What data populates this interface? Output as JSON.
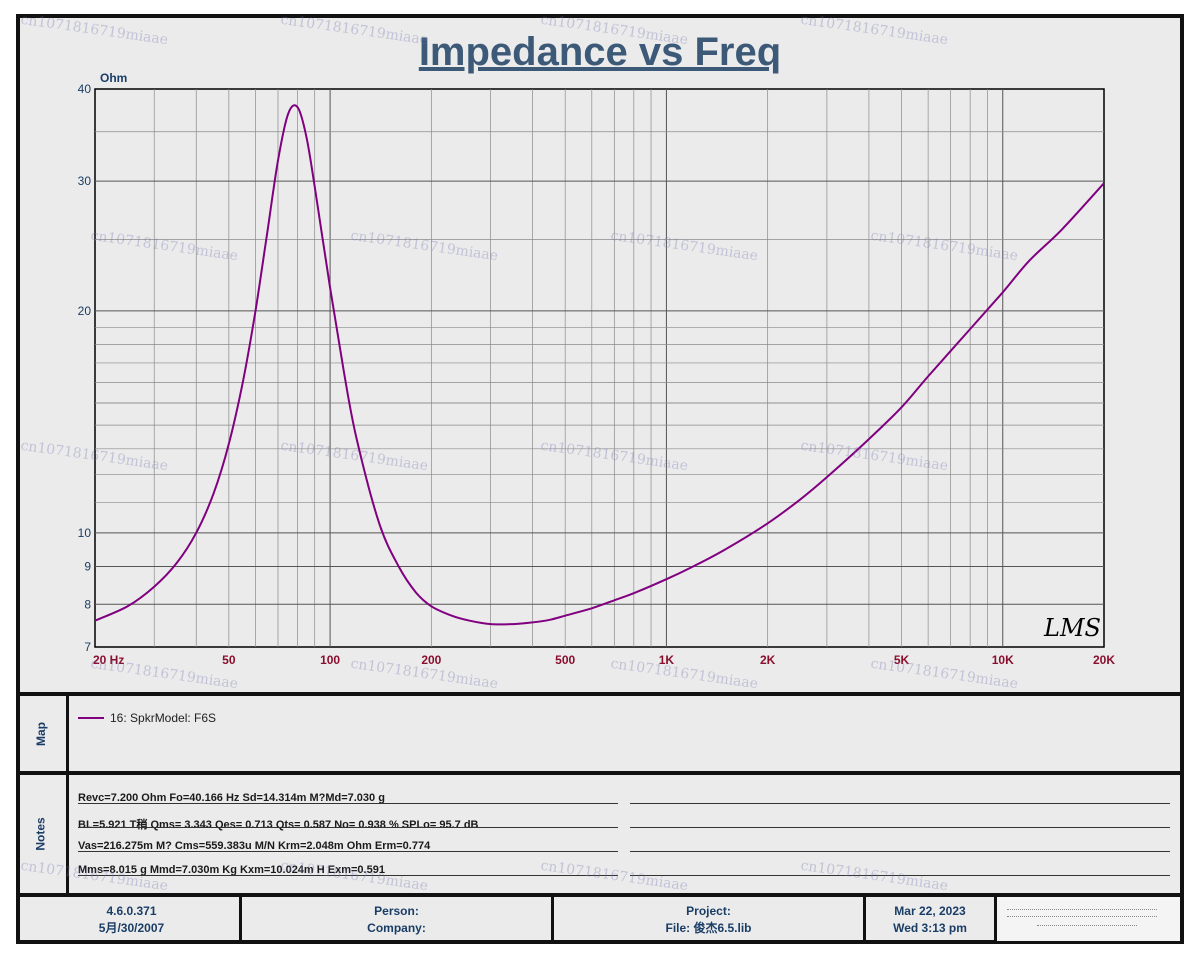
{
  "chart_data": {
    "type": "line",
    "title": "Impedance vs Freq",
    "ylabel": "Ohm",
    "xscale": "log",
    "yscale": "log",
    "xlim": [
      20,
      20000
    ],
    "ylim": [
      7,
      40
    ],
    "x_ticks": [
      {
        "value": 20,
        "label": "20 Hz"
      },
      {
        "value": 50,
        "label": "50"
      },
      {
        "value": 100,
        "label": "100"
      },
      {
        "value": 200,
        "label": "200"
      },
      {
        "value": 500,
        "label": "500"
      },
      {
        "value": 1000,
        "label": "1K"
      },
      {
        "value": 2000,
        "label": "2K"
      },
      {
        "value": 5000,
        "label": "5K"
      },
      {
        "value": 10000,
        "label": "10K"
      },
      {
        "value": 20000,
        "label": "20K"
      }
    ],
    "y_ticks": [
      {
        "value": 7,
        "label": "7"
      },
      {
        "value": 8,
        "label": "8"
      },
      {
        "value": 9,
        "label": "9"
      },
      {
        "value": 10,
        "label": "10"
      },
      {
        "value": 20,
        "label": "20"
      },
      {
        "value": 30,
        "label": "30"
      },
      {
        "value": 40,
        "label": "40"
      }
    ],
    "grid": true,
    "series": [
      {
        "name": "16: SpkrModel: F6S",
        "color": "#800080",
        "x": [
          20,
          25,
          30,
          35,
          40,
          45,
          50,
          55,
          60,
          65,
          70,
          75,
          80,
          85,
          90,
          100,
          110,
          120,
          140,
          160,
          180,
          200,
          230,
          260,
          300,
          350,
          400,
          450,
          500,
          600,
          700,
          800,
          1000,
          1200,
          1500,
          2000,
          2500,
          3000,
          4000,
          5000,
          6000,
          8000,
          10000,
          12000,
          15000,
          20000
        ],
        "y": [
          7.6,
          7.95,
          8.45,
          9.1,
          10.0,
          11.3,
          13.2,
          16.0,
          20.0,
          25.5,
          32.0,
          37.0,
          37.8,
          34.5,
          29.5,
          21.5,
          16.5,
          13.4,
          10.3,
          9.0,
          8.3,
          7.95,
          7.72,
          7.6,
          7.52,
          7.52,
          7.56,
          7.62,
          7.72,
          7.9,
          8.1,
          8.28,
          8.65,
          9.0,
          9.5,
          10.3,
          11.1,
          11.9,
          13.4,
          14.8,
          16.3,
          18.9,
          21.2,
          23.4,
          25.8,
          29.8
        ]
      }
    ]
  },
  "watermark_logo": "LMS",
  "watermark_text": "cn1071816719miaae",
  "map": {
    "label": "Map",
    "legend_entry": "16: SpkrModel: F6S"
  },
  "notes": {
    "label": "Notes",
    "lines": [
      "Revc=7.200 Ohm  Fo=40.166 Hz  Sd=14.314m M?Md=7.030 g",
      "BL=5.921 T稍  Qms= 3.343  Qes= 0.713  Qts= 0.587  No= 0.938 %  SPLo= 95.7 dB",
      "Vas=216.275m M? Cms=559.383u M/N  Krm=2.048m Ohm  Erm=0.774",
      "Mms=8.015 g  Mmd=7.030m Kg  Kxm=10.024m H  Exm=0.591"
    ]
  },
  "footer": {
    "version": "4.6.0.371",
    "version_date": "5月/30/2007",
    "person_label": "Person:",
    "company_label": "Company:",
    "project_label": "Project:",
    "file_label": "File: 俊杰6.5.lib",
    "date": "Mar 22, 2023",
    "day_time": "Wed  3:13 pm"
  }
}
